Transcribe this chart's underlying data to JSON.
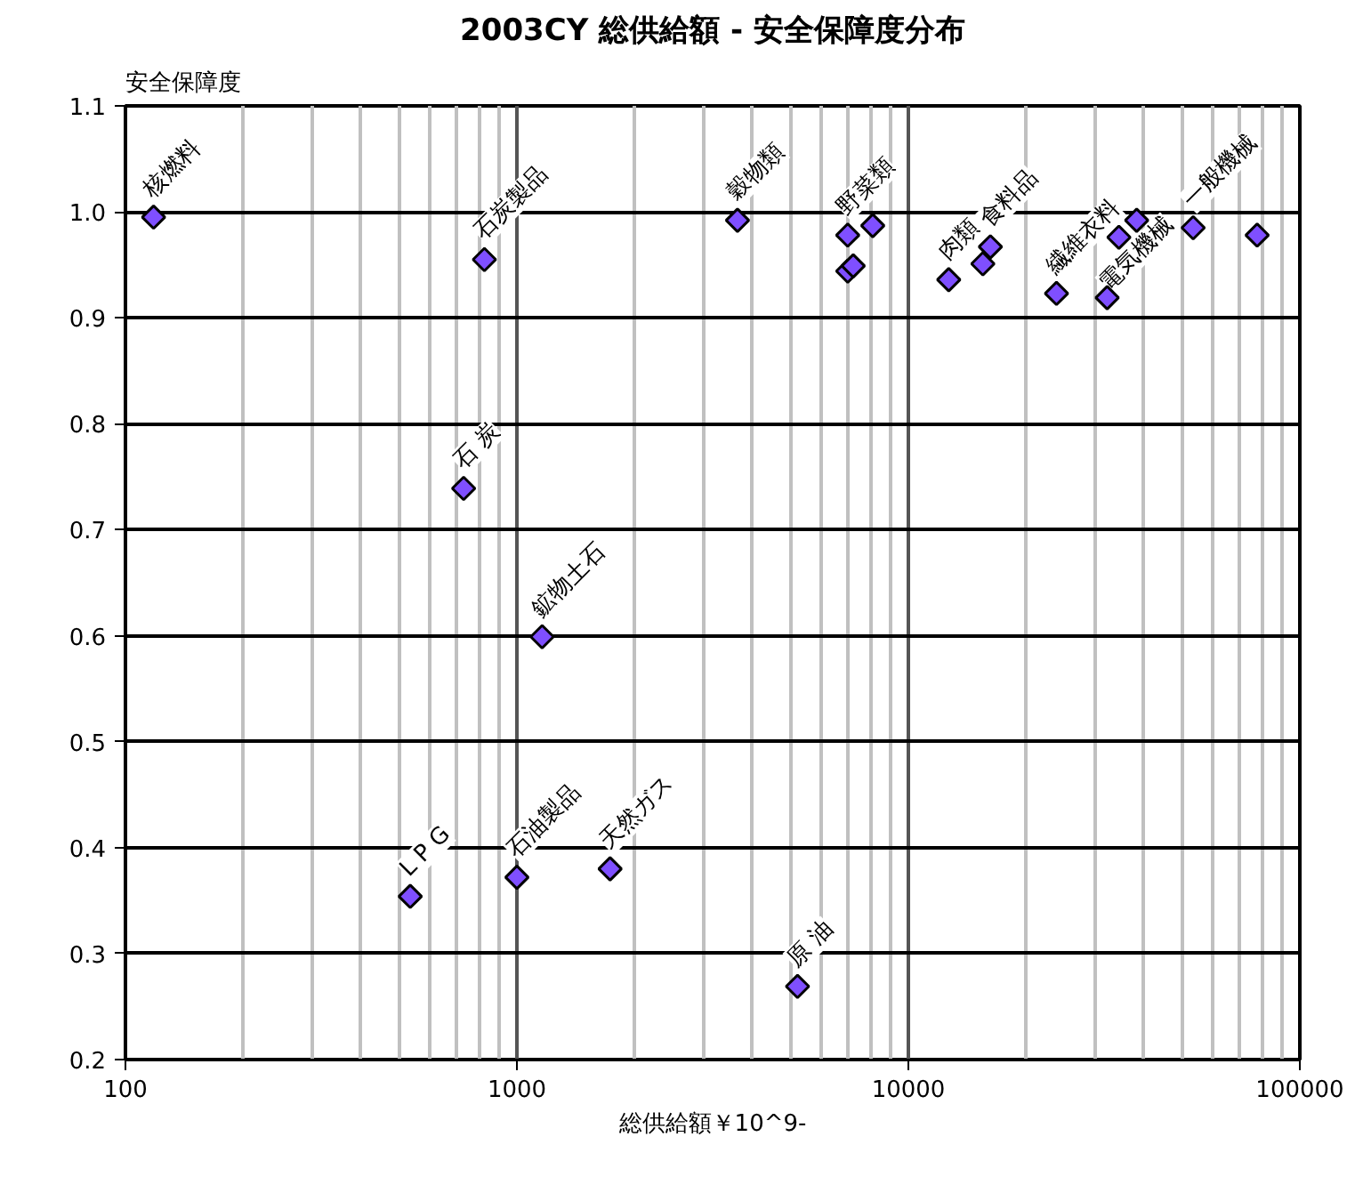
{
  "chart_data": {
    "type": "scatter",
    "title": "2003CY 総供給額 - 安全保障度分布",
    "xlabel": "総供給額￥10^9-",
    "ylabel": "安全保障度",
    "log": "x",
    "grid": true,
    "marker": "diamond",
    "xlim": [
      100,
      100000
    ],
    "xticks": [
      100,
      1000,
      10000,
      100000
    ],
    "ylim": [
      0.2,
      1.1
    ],
    "yticks": [
      0.2,
      0.3,
      0.4,
      0.5,
      0.6,
      0.7,
      0.8,
      0.9,
      {
        "value": 1.0,
        "label": "1.0"
      },
      1.1
    ],
    "series": [
      {
        "color": "#7f4fff",
        "x": [
          118,
          826,
          3660,
          7000,
          7000,
          7230,
          8110,
          12680,
          15500,
          16200,
          23900,
          32200,
          34500,
          38300,
          53400,
          77800,
          731,
          1160,
          534,
          1000,
          1730,
          5210
        ],
        "values": [
          0.995,
          0.955,
          0.992,
          0.978,
          0.944,
          0.949,
          0.987,
          0.936,
          0.951,
          0.967,
          0.923,
          0.919,
          0.976,
          0.992,
          0.985,
          0.978,
          0.739,
          0.599,
          0.354,
          0.372,
          0.38,
          0.269
        ]
      }
    ],
    "annotations": [
      {
        "text": "核燃料",
        "x": 118,
        "y": 0.995
      },
      {
        "text": "石炭製品",
        "x": 826,
        "y": 0.955
      },
      {
        "text": "穀物類",
        "x": 3660,
        "y": 0.992
      },
      {
        "text": "野菜類",
        "x": 7000,
        "y": 0.978
      },
      {
        "text": "肉類",
        "x": 12680,
        "y": 0.936
      },
      {
        "text": "食料品",
        "x": 16200,
        "y": 0.967
      },
      {
        "text": "繊維衣料",
        "x": 23900,
        "y": 0.923
      },
      {
        "text": "電気機械",
        "x": 32200,
        "y": 0.919
      },
      {
        "text": "一般機械",
        "x": 53400,
        "y": 0.985
      },
      {
        "text": "石 炭",
        "x": 731,
        "y": 0.739
      },
      {
        "text": "鉱物土石",
        "x": 1160,
        "y": 0.599
      },
      {
        "text": "L P G",
        "x": 534,
        "y": 0.354
      },
      {
        "text": "石油製品",
        "x": 1000,
        "y": 0.372
      },
      {
        "text": "天然ガス",
        "x": 1730,
        "y": 0.38
      },
      {
        "text": "原 油",
        "x": 5210,
        "y": 0.269
      }
    ]
  }
}
